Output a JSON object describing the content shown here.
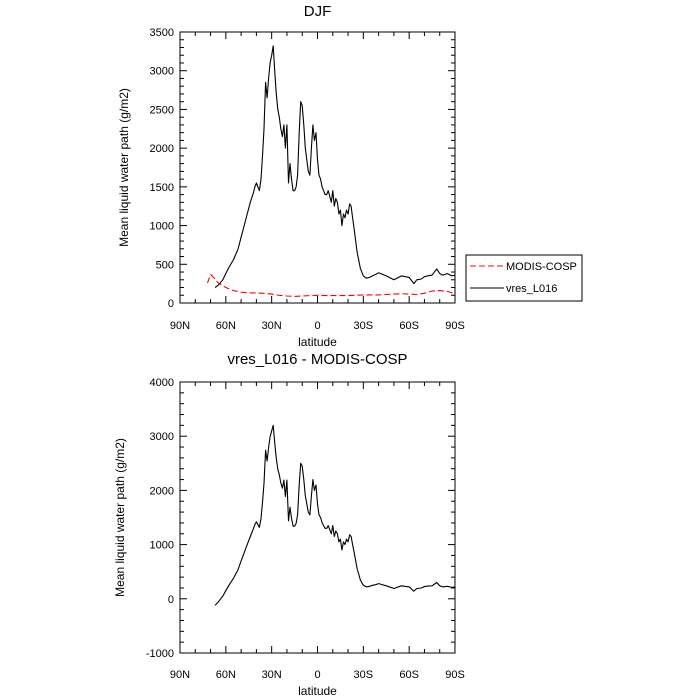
{
  "chart_data": [
    {
      "type": "line",
      "title": "DJF",
      "xlabel": "latitude",
      "ylabel": "Mean liquid water path (g/m2)",
      "xlim": [
        90,
        -90
      ],
      "ylim": [
        0,
        3500
      ],
      "x_ticks": [
        {
          "value": 90,
          "label": "90N"
        },
        {
          "value": 60,
          "label": "60N"
        },
        {
          "value": 30,
          "label": "30N"
        },
        {
          "value": 0,
          "label": "0"
        },
        {
          "value": -30,
          "label": "30S"
        },
        {
          "value": -60,
          "label": "60S"
        },
        {
          "value": -90,
          "label": "90S"
        }
      ],
      "y_ticks": [
        0,
        500,
        1000,
        1500,
        2000,
        2500,
        3000,
        3500
      ],
      "legend_position": "right",
      "series": [
        {
          "name": "MODIS-COSP",
          "color": "#ff0000",
          "dash": "dashed",
          "x": [
            72,
            70,
            68,
            65,
            60,
            55,
            50,
            45,
            40,
            35,
            30,
            25,
            20,
            15,
            10,
            5,
            0,
            -5,
            -10,
            -15,
            -20,
            -25,
            -30,
            -35,
            -40,
            -45,
            -50,
            -55,
            -60,
            -65,
            -70,
            -75,
            -80,
            -85,
            -90
          ],
          "y": [
            260,
            370,
            330,
            260,
            200,
            160,
            140,
            130,
            130,
            125,
            115,
            100,
            90,
            85,
            90,
            95,
            100,
            95,
            95,
            95,
            95,
            100,
            105,
            105,
            105,
            110,
            115,
            120,
            115,
            110,
            125,
            155,
            160,
            150,
            120
          ]
        },
        {
          "name": "vres_L016",
          "color": "#000000",
          "dash": "solid",
          "x": [
            67,
            65,
            62,
            60,
            58,
            55,
            52,
            50,
            48,
            46,
            44,
            42,
            41,
            40,
            38,
            37,
            36,
            35,
            34,
            33,
            32,
            31,
            30,
            29,
            28,
            27,
            26,
            25,
            24,
            23,
            22,
            21,
            20,
            19,
            18,
            17,
            16,
            15,
            14,
            13,
            12,
            11,
            10,
            9,
            8,
            7,
            6,
            5,
            4,
            3,
            2,
            1,
            0,
            -1,
            -2,
            -3,
            -4,
            -5,
            -6,
            -7,
            -8,
            -9,
            -10,
            -11,
            -12,
            -13,
            -14,
            -15,
            -16,
            -17,
            -18,
            -19,
            -20,
            -21,
            -22,
            -23,
            -24,
            -25,
            -26,
            -27,
            -28,
            -30,
            -32,
            -34,
            -36,
            -38,
            -40,
            -45,
            -50,
            -55,
            -60,
            -63,
            -65,
            -68,
            -70,
            -72,
            -75,
            -78,
            -80,
            -82,
            -85,
            -88,
            -90
          ],
          "y": [
            200,
            230,
            300,
            380,
            460,
            560,
            700,
            850,
            1000,
            1150,
            1300,
            1420,
            1500,
            1550,
            1450,
            1600,
            1900,
            2250,
            2850,
            2650,
            2900,
            3100,
            3200,
            3320,
            3000,
            2700,
            2500,
            2400,
            2250,
            2150,
            2300,
            2000,
            2300,
            1550,
            1800,
            1600,
            1450,
            1450,
            1500,
            1650,
            2200,
            2600,
            2550,
            2300,
            2000,
            1850,
            1700,
            1650,
            2000,
            2300,
            2100,
            2200,
            1850,
            1650,
            1600,
            1500,
            1450,
            1400,
            1400,
            1450,
            1380,
            1300,
            1450,
            1250,
            1350,
            1300,
            1150,
            1200,
            1000,
            1150,
            1100,
            1200,
            1150,
            1280,
            1250,
            1100,
            950,
            800,
            650,
            550,
            450,
            350,
            320,
            330,
            350,
            370,
            390,
            350,
            300,
            350,
            330,
            250,
            300,
            310,
            340,
            350,
            360,
            440,
            380,
            360,
            380,
            350,
            360
          ]
        }
      ]
    },
    {
      "type": "line",
      "title": "vres_L016 - MODIS-COSP",
      "xlabel": "latitude",
      "ylabel": "Mean liquid water path (g/m2)",
      "xlim": [
        90,
        -90
      ],
      "ylim": [
        -1000,
        4000
      ],
      "x_ticks": [
        {
          "value": 90,
          "label": "90N"
        },
        {
          "value": 60,
          "label": "60N"
        },
        {
          "value": 30,
          "label": "30N"
        },
        {
          "value": 0,
          "label": "0"
        },
        {
          "value": -30,
          "label": "30S"
        },
        {
          "value": -60,
          "label": "60S"
        },
        {
          "value": -90,
          "label": "90S"
        }
      ],
      "y_ticks": [
        -1000,
        0,
        1000,
        2000,
        3000,
        4000
      ],
      "series": [
        {
          "color": "#000000",
          "dash": "solid",
          "x": [
            67,
            65,
            62,
            60,
            58,
            55,
            52,
            50,
            48,
            46,
            44,
            42,
            41,
            40,
            38,
            37,
            36,
            35,
            34,
            33,
            32,
            31,
            30,
            29,
            28,
            27,
            26,
            25,
            24,
            23,
            22,
            21,
            20,
            19,
            18,
            17,
            16,
            15,
            14,
            13,
            12,
            11,
            10,
            9,
            8,
            7,
            6,
            5,
            4,
            3,
            2,
            1,
            0,
            -1,
            -2,
            -3,
            -4,
            -5,
            -6,
            -7,
            -8,
            -9,
            -10,
            -11,
            -12,
            -13,
            -14,
            -15,
            -16,
            -17,
            -18,
            -19,
            -20,
            -21,
            -22,
            -23,
            -24,
            -25,
            -26,
            -27,
            -28,
            -30,
            -32,
            -34,
            -36,
            -38,
            -40,
            -45,
            -50,
            -55,
            -60,
            -63,
            -65,
            -68,
            -70,
            -72,
            -75,
            -78,
            -80,
            -82,
            -85,
            -88,
            -90
          ],
          "y": [
            -120,
            -60,
            50,
            150,
            250,
            380,
            540,
            700,
            850,
            1000,
            1150,
            1290,
            1370,
            1420,
            1320,
            1480,
            1780,
            2130,
            2740,
            2540,
            2790,
            2990,
            3100,
            3200,
            2880,
            2590,
            2390,
            2290,
            2140,
            2040,
            2190,
            1890,
            2190,
            1440,
            1690,
            1490,
            1340,
            1340,
            1390,
            1550,
            2100,
            2500,
            2450,
            2200,
            1900,
            1750,
            1600,
            1550,
            1900,
            2200,
            2000,
            2100,
            1750,
            1550,
            1500,
            1400,
            1350,
            1300,
            1300,
            1350,
            1280,
            1200,
            1350,
            1150,
            1250,
            1200,
            1050,
            1100,
            900,
            1050,
            1000,
            1100,
            1050,
            1180,
            1150,
            1000,
            850,
            700,
            550,
            450,
            350,
            250,
            220,
            230,
            250,
            260,
            280,
            240,
            190,
            240,
            220,
            140,
            190,
            200,
            225,
            235,
            240,
            300,
            240,
            220,
            230,
            210,
            220
          ]
        }
      ]
    }
  ]
}
